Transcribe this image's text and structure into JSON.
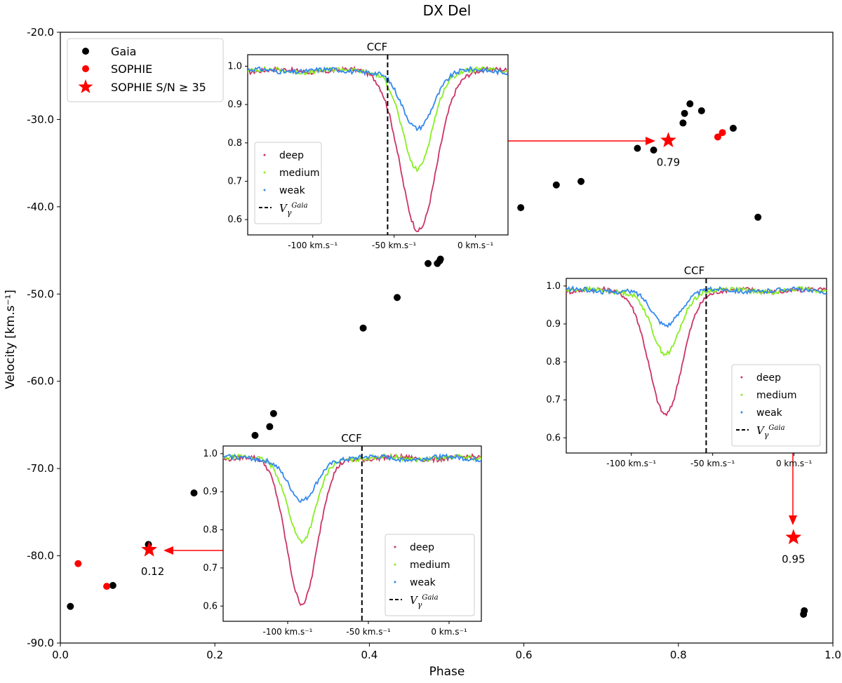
{
  "chart_data": {
    "type": "scatter",
    "title": "DX Del",
    "xlabel": "Phase",
    "ylabel": "Velocity [km.s⁻¹]",
    "xlim": [
      0.0,
      1.0
    ],
    "ylim": [
      -90.0,
      -20.0
    ],
    "xticks": [
      0.0,
      0.2,
      0.4,
      0.6,
      0.8,
      1.0
    ],
    "xtick_labels": [
      "0.0",
      "0.2",
      "0.4",
      "0.6",
      "0.8",
      "1.0"
    ],
    "yticks": [
      -90,
      -80,
      -70,
      -60,
      -50,
      -40,
      -30,
      -20
    ],
    "ytick_labels": [
      "-90.0",
      "-80.0",
      "-70.0",
      "-60.0",
      "-50.0",
      "-40.0",
      "-30.0",
      "-20.0"
    ],
    "grid": false,
    "legend_position": "top-left",
    "series": [
      {
        "name": "Gaia",
        "marker": "circle",
        "color": "#000000",
        "x": [
          0.013,
          0.068,
          0.114,
          0.173,
          0.252,
          0.271,
          0.276,
          0.392,
          0.436,
          0.476,
          0.488,
          0.491,
          0.492,
          0.596,
          0.642,
          0.674,
          0.747,
          0.768,
          0.806,
          0.808,
          0.815,
          0.83,
          0.871,
          0.903,
          0.962,
          0.963
        ],
        "y": [
          -85.8,
          -83.4,
          -78.7,
          -72.8,
          -66.2,
          -65.2,
          -63.7,
          -53.9,
          -50.4,
          -46.5,
          -46.5,
          -46.2,
          -46.0,
          -40.1,
          -37.5,
          -37.1,
          -33.3,
          -33.5,
          -30.4,
          -29.3,
          -28.2,
          -29.0,
          -31.0,
          -41.2,
          -86.7,
          -86.3
        ]
      },
      {
        "name": "SOPHIE",
        "marker": "circle",
        "color": "#ff0000",
        "x": [
          0.023,
          0.06,
          0.851,
          0.857
        ],
        "y": [
          -80.9,
          -83.5,
          -32.0,
          -31.5
        ]
      },
      {
        "name": "SOPHIE S/N ≥ 35",
        "marker": "star",
        "color": "#ff0000",
        "x": [
          0.115,
          0.787,
          0.949
        ],
        "y": [
          -79.3,
          -32.4,
          -77.9
        ],
        "labels": [
          "0.12",
          "0.79",
          "0.95"
        ]
      }
    ],
    "insets": [
      {
        "id": "ccf-top",
        "title": "CCF",
        "xlim": [
          -140,
          20
        ],
        "ylim": [
          0.56,
          1.03
        ],
        "yticks": [
          0.6,
          0.7,
          0.8,
          0.9,
          1.0
        ],
        "ytick_labels": [
          "0.6",
          "0.7",
          "0.8",
          "0.9",
          "1.0"
        ],
        "xticks": [
          -100,
          -50,
          0
        ],
        "xtick_labels": [
          "-100 km.s⁻¹",
          "-50 km.s⁻¹",
          "0 km.s⁻¹"
        ],
        "vgamma": -54,
        "legend_position": "lower-left",
        "series": [
          {
            "name": "deep",
            "color": "#cc3366",
            "center": -35,
            "sigma": 11,
            "depth": 0.42
          },
          {
            "name": "medium",
            "color": "#88ee22",
            "center": -36,
            "sigma": 9,
            "depth": 0.26
          },
          {
            "name": "weak",
            "color": "#3388ee",
            "center": -36,
            "sigma": 9.5,
            "depth": 0.15
          }
        ],
        "vgamma_label": "Vγ Gaia"
      },
      {
        "id": "ccf-right",
        "title": "CCF",
        "xlim": [
          -140,
          20
        ],
        "ylim": [
          0.56,
          1.02
        ],
        "yticks": [
          0.6,
          0.7,
          0.8,
          0.9,
          1.0
        ],
        "ytick_labels": [
          "0.6",
          "0.7",
          "0.8",
          "0.9",
          "1.0"
        ],
        "xticks": [
          -100,
          -50,
          0
        ],
        "xtick_labels": [
          "-100 km.s⁻¹",
          "-50 km.s⁻¹",
          "0 km.s⁻¹"
        ],
        "vgamma": -54,
        "legend_position": "lower-right",
        "series": [
          {
            "name": "deep",
            "color": "#cc3366",
            "center": -79,
            "sigma": 10,
            "depth": 0.33
          },
          {
            "name": "medium",
            "color": "#88ee22",
            "center": -79,
            "sigma": 8.5,
            "depth": 0.17
          },
          {
            "name": "weak",
            "color": "#3388ee",
            "center": -79,
            "sigma": 8.5,
            "depth": 0.09
          }
        ],
        "vgamma_label": "Vγ Gaia"
      },
      {
        "id": "ccf-bottom",
        "title": "CCF",
        "xlim": [
          -140,
          20
        ],
        "ylim": [
          0.56,
          1.02
        ],
        "yticks": [
          0.6,
          0.7,
          0.8,
          0.9,
          1.0
        ],
        "ytick_labels": [
          "0.6",
          "0.7",
          "0.8",
          "0.9",
          "1.0"
        ],
        "xticks": [
          -100,
          -50,
          0
        ],
        "xtick_labels": [
          "-100 km.s⁻¹",
          "-50 km.s⁻¹",
          "0 km.s⁻¹"
        ],
        "vgamma": -54,
        "legend_position": "lower-right",
        "series": [
          {
            "name": "deep",
            "color": "#cc3366",
            "center": -91,
            "sigma": 9.5,
            "depth": 0.38
          },
          {
            "name": "medium",
            "color": "#88ee22",
            "center": -91,
            "sigma": 8.5,
            "depth": 0.22
          },
          {
            "name": "weak",
            "color": "#3388ee",
            "center": -91,
            "sigma": 8.5,
            "depth": 0.115
          }
        ],
        "vgamma_label": "Vγ Gaia"
      }
    ]
  }
}
